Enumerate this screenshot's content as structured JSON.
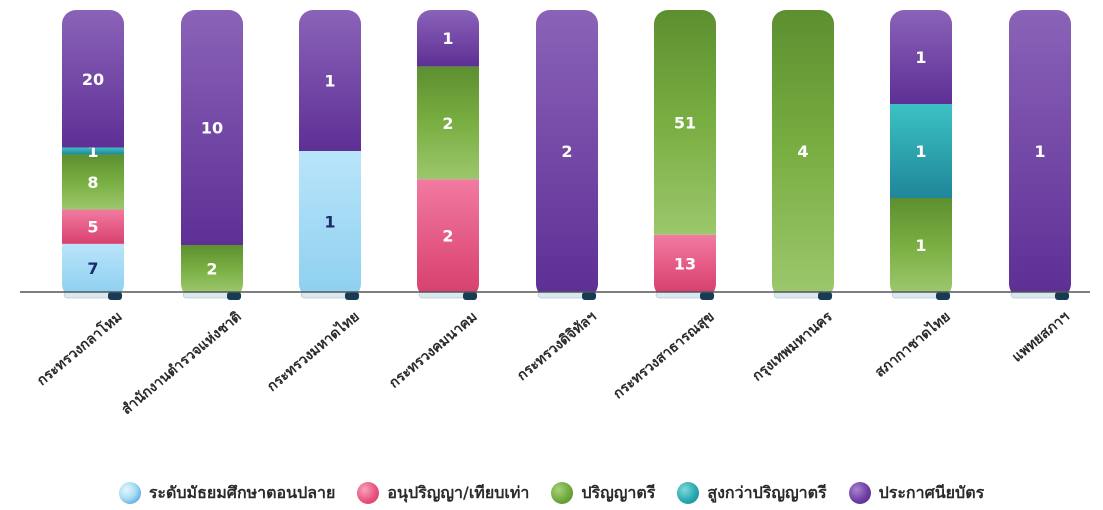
{
  "chart_data": {
    "type": "bar",
    "stacked": true,
    "normalized": true,
    "categories": [
      "กระทรวงกลาโหม",
      "สำนักงานตำรวจแห่งชาติ",
      "กระทรวงมหาดไทย",
      "กระทรวงคมนาคม",
      "กระทรวงดิจิทัลฯ",
      "กระทรวงสาธารณสุข",
      "กรุงเทพมหานคร",
      "สภากาชาดไทย",
      "แพทยสภาฯ"
    ],
    "series": [
      {
        "name": "ระดับมัธยมศึกษาตอนปลาย",
        "color": "#a8dcf5",
        "values": [
          7,
          0,
          1,
          0,
          0,
          0,
          0,
          0,
          0
        ]
      },
      {
        "name": "อนุปริญญา/เทียบเท่า",
        "color": "#e8547f",
        "values": [
          5,
          0,
          0,
          2,
          0,
          13,
          0,
          0,
          0
        ]
      },
      {
        "name": "ปริญญาตรี",
        "color": "#6fa83c",
        "values": [
          8,
          2,
          0,
          2,
          0,
          51,
          4,
          1,
          0
        ]
      },
      {
        "name": "สูงกว่าปริญญาตรี",
        "color": "#2aa8b0",
        "values": [
          1,
          0,
          0,
          0,
          0,
          0,
          0,
          1,
          0
        ]
      },
      {
        "name": "ประกาศนียบัตร",
        "color": "#6e3fa3",
        "values": [
          20,
          10,
          1,
          1,
          2,
          0,
          0,
          1,
          1
        ]
      }
    ],
    "legend_position": "bottom",
    "grid": false
  }
}
